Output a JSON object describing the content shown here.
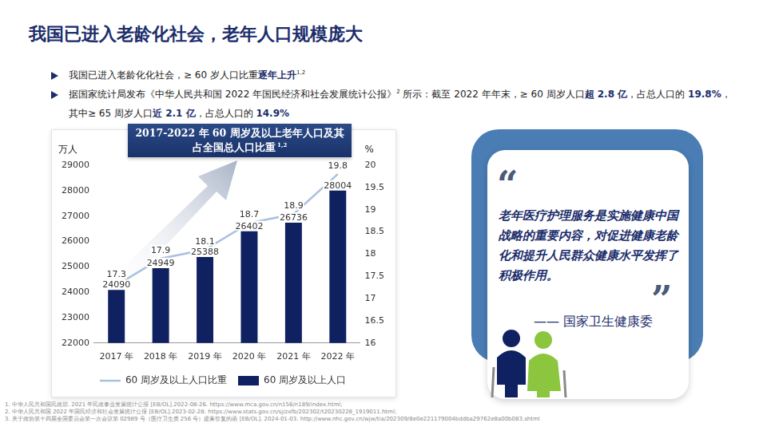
{
  "header": {
    "title": "我国已进入老龄化社会，老年人口规模庞大"
  },
  "bullets": [
    [
      {
        "text": "我国已进入老龄化化社会，≥ 60 岁人口比重"
      },
      {
        "text": "逐年上升",
        "style": "bold"
      },
      {
        "text": "1,2",
        "style": "sup"
      }
    ],
    [
      {
        "text": "据国家统计局发布《中华人民共和国 2022 年国民经济和社会发展统计公报》"
      },
      {
        "text": "2",
        "style": "sup"
      },
      {
        "text": " 所示：截至 2022 年年末，≥ 60 周岁人口"
      },
      {
        "text": "超 2.8 亿",
        "style": "bold"
      },
      {
        "text": "，占总人口的 "
      },
      {
        "text": "19.8%",
        "style": "bold"
      },
      {
        "text": "，其中≥ 65 周岁人口"
      },
      {
        "text": "近 2.1 亿",
        "style": "bold"
      },
      {
        "text": "，占总人口的 "
      },
      {
        "text": "14.9%",
        "style": "bold"
      }
    ]
  ],
  "chart_data": {
    "type": "bar",
    "title": "2017-2022 年 60 周岁及以上老年人口及其占全国总人口比重",
    "title_ref": "1,2",
    "ylabel": "万人",
    "y2label": "%",
    "categories": [
      "2017 年",
      "2018 年",
      "2019 年",
      "2020 年",
      "2021 年",
      "2022 年"
    ],
    "series": [
      {
        "name": "60 周岁及以上人口",
        "type": "bar",
        "color": "#0f2160",
        "values": [
          24090,
          24949,
          25388,
          26402,
          26736,
          28004
        ]
      },
      {
        "name": "60 周岁及以上人口比重",
        "type": "line",
        "axis": "y2",
        "color": "#a9c0e0",
        "marker": "none",
        "values": [
          17.3,
          17.9,
          18.1,
          18.7,
          18.9,
          19.8
        ]
      }
    ],
    "ylim": [
      22000,
      29000
    ],
    "yticks": [
      22000,
      23000,
      24000,
      25000,
      26000,
      27000,
      28000,
      29000
    ],
    "y2lim": [
      16,
      20
    ],
    "y2ticks": [
      16,
      16.5,
      17,
      17.5,
      18,
      18.5,
      19,
      19.5,
      20
    ],
    "grid": false,
    "legend": "bottom",
    "data_labels": true
  },
  "quote": {
    "open_mark": "“",
    "text": "老年医疗护理服务是实施健康中国战略的重要内容，对促进健康老龄化和提升人民群众健康水平发挥了积极作用。",
    "close_mark": "”",
    "attribution": "—— 国家卫生健康委"
  },
  "footnotes": [
    "1. 中华人民共和国民政部. 2021 年民政事业发展统计公报 [EB/OL].2022-08-26. https://www.mca.gov.cn/n156/n189/index.html;",
    "2. 中华人民共和国 2022 年国民经济和社会发展统计公报 [EB/OL].2023-02-28. https://www.stats.gov.cn/sj/zxfb/202302/t20230228_1919011.html;",
    "3. 关于政协第十四届全国委员会第一次会议第 02989 号（医疗卫生类 256 号）提案答复的函 [EB/OL]. 2024-01-03. http://www.nhc.gov.cn/wjw/tia/202309/8e0e221179004bddba29762e8a00b083.shtml"
  ]
}
